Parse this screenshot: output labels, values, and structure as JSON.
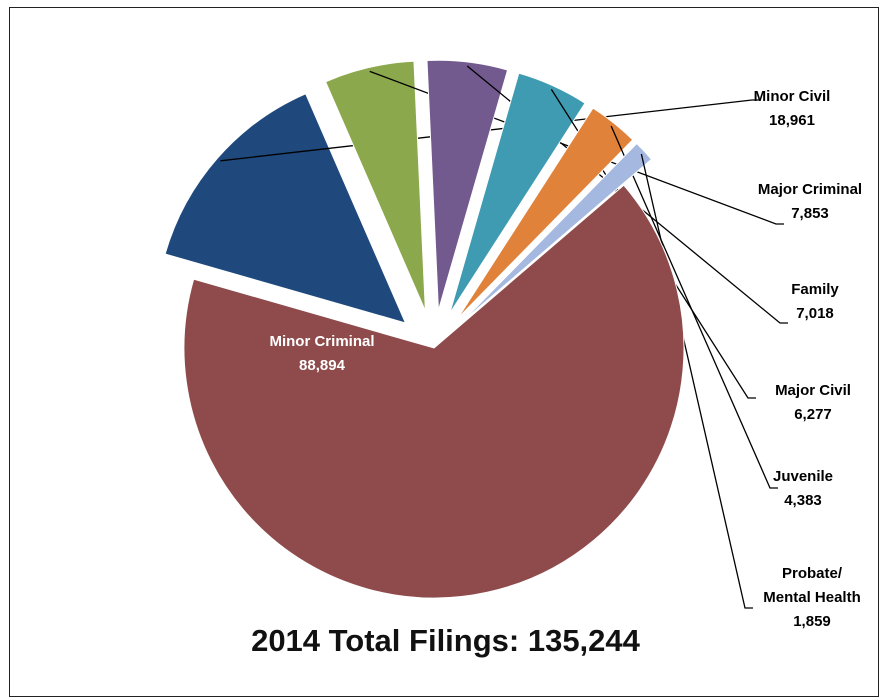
{
  "chart_data": {
    "type": "pie",
    "title": "2014 Total Filings: 135,244",
    "slices": [
      {
        "name": "Minor Civil",
        "value": 18961,
        "value_label": "18,961",
        "color": "#1F497D",
        "exploded": true
      },
      {
        "name": "Major Criminal",
        "value": 7853,
        "value_label": "7,853",
        "color": "#8BA84C",
        "exploded": true
      },
      {
        "name": "Family",
        "value": 7018,
        "value_label": "7,018",
        "color": "#725A8E",
        "exploded": true
      },
      {
        "name": "Major Civil",
        "value": 6277,
        "value_label": "6,277",
        "color": "#3E9BB1",
        "exploded": true
      },
      {
        "name": "Juvenile",
        "value": 4383,
        "value_label": "4,383",
        "color": "#E0823A",
        "exploded": true
      },
      {
        "name": "Probate/ Mental Health",
        "lines": [
          "Probate/",
          "Mental Health"
        ],
        "value": 1859,
        "value_label": "1,859",
        "color": "#A5B8DF",
        "exploded": true
      },
      {
        "name": "Minor Criminal",
        "value": 88894,
        "value_label": "88,894",
        "color": "#8F4B4B",
        "exploded": false
      }
    ]
  }
}
